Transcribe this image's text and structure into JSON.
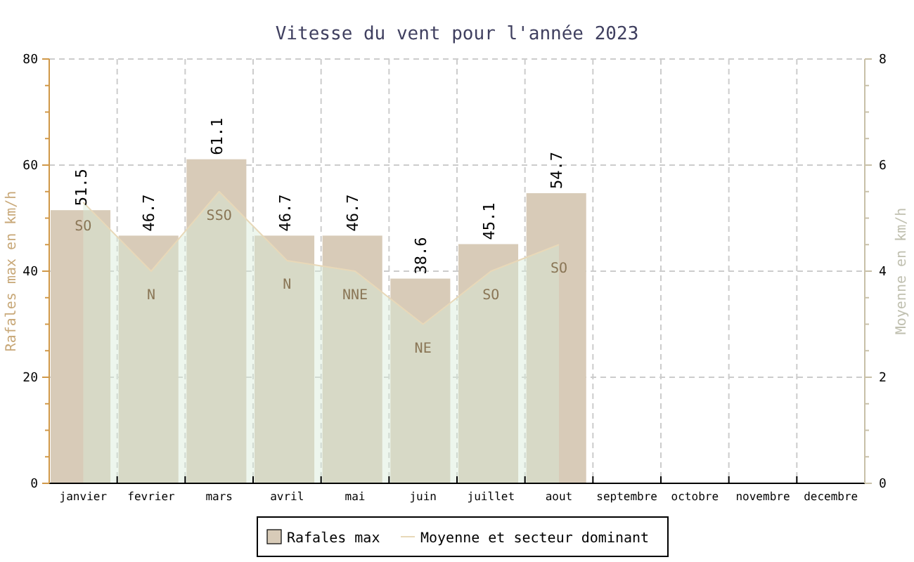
{
  "chart_data": {
    "type": "bar",
    "title": "Vitesse du vent pour l'année 2023",
    "ylabel": "Rafales max en km/h",
    "y2label": "Moyenne en km/h",
    "categories": [
      "janvier",
      "fevrier",
      "mars",
      "avril",
      "mai",
      "juin",
      "juillet",
      "aout",
      "septembre",
      "octobre",
      "novembre",
      "decembre"
    ],
    "series": [
      {
        "name": "Rafales max",
        "color": "#d8cbb8",
        "values": [
          51.5,
          46.7,
          61.1,
          46.7,
          46.7,
          38.6,
          45.1,
          54.7,
          null,
          null,
          null,
          null
        ],
        "value_labels": [
          "51.5",
          "46.7",
          "61.1",
          "46.7",
          "46.7",
          "38.6",
          "45.1",
          "54.7",
          null,
          null,
          null,
          null
        ]
      },
      {
        "name": "Moyenne et secteur dominant",
        "type": "area",
        "axis": "y2",
        "color": "#e8d8b8",
        "values": [
          5.3,
          4.0,
          5.5,
          4.2,
          4.0,
          3.0,
          4.0,
          4.5,
          null,
          null,
          null,
          null
        ],
        "value_labels": [
          "SO",
          "N",
          "SSO",
          "N",
          "NNE",
          "NE",
          "SO",
          "SO",
          null,
          null,
          null,
          null
        ]
      }
    ],
    "ylim": [
      0,
      80
    ],
    "yticks": [
      0,
      {
        "value": 5,
        "label": null
      },
      {
        "value": 10,
        "label": null
      },
      {
        "value": 15,
        "label": null
      },
      20,
      {
        "value": 25,
        "label": null
      },
      {
        "value": 30,
        "label": null
      },
      {
        "value": 35,
        "label": null
      },
      40,
      {
        "value": 45,
        "label": null
      },
      {
        "value": 50,
        "label": null
      },
      {
        "value": 55,
        "label": null
      },
      60,
      {
        "value": 65,
        "label": null
      },
      {
        "value": 70,
        "label": null
      },
      {
        "value": 75,
        "label": null
      },
      80
    ],
    "y2lim": [
      0,
      8
    ],
    "y2ticks": [
      0,
      {
        "value": 0.5,
        "label": null
      },
      {
        "value": 1,
        "label": null
      },
      {
        "value": 1.5,
        "label": null
      },
      2,
      {
        "value": 2.5,
        "label": null
      },
      {
        "value": 3,
        "label": null
      },
      {
        "value": 3.5,
        "label": null
      },
      4,
      {
        "value": 4.5,
        "label": null
      },
      {
        "value": 5,
        "label": null
      },
      {
        "value": 5.5,
        "label": null
      },
      6,
      {
        "value": 6.5,
        "label": null
      },
      {
        "value": 7,
        "label": null
      },
      {
        "value": 7.5,
        "label": null
      },
      8
    ],
    "grid": true,
    "legend": "bottom"
  }
}
